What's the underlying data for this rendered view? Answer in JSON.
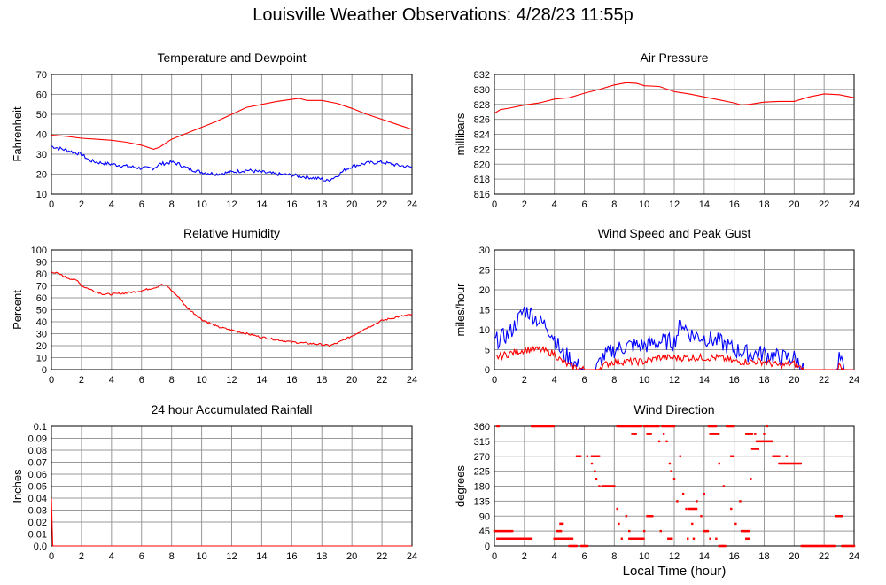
{
  "page_title": "Louisville Weather Observations: 4/28/23 11:55p",
  "x_axis_label": "Local Time (hour)",
  "colors": {
    "primary": "#ff0000",
    "secondary": "#0000ff",
    "grid": "#999999"
  },
  "chart_data": [
    {
      "id": "temp",
      "type": "line",
      "title": "Temperature and Dewpoint",
      "ylabel": "Fahrenheit",
      "xlim": [
        0,
        24
      ],
      "xticks": [
        0,
        2,
        4,
        6,
        8,
        10,
        12,
        14,
        16,
        18,
        20,
        22,
        24
      ],
      "ylim": [
        10,
        70
      ],
      "yticks": [
        10,
        20,
        30,
        40,
        50,
        60,
        70
      ],
      "grid": true,
      "series": [
        {
          "color": "#ff0000",
          "noise": 0,
          "x": [
            0,
            1,
            2,
            3,
            4,
            5,
            6,
            6.8,
            7.2,
            8,
            9,
            10,
            11,
            12,
            13,
            14,
            15,
            16,
            16.5,
            17,
            18,
            19,
            20,
            21,
            22,
            23,
            24
          ],
          "y": [
            39.5,
            39,
            38,
            37.5,
            37,
            36,
            34.5,
            32.5,
            33.5,
            37.5,
            40.5,
            43.5,
            46.5,
            50,
            53.5,
            55,
            56.5,
            57.5,
            58,
            57,
            57,
            55.5,
            53,
            50,
            47.5,
            45,
            42.5
          ]
        },
        {
          "color": "#0000ff",
          "noise": 0.9,
          "x": [
            0,
            0.5,
            1,
            2,
            2.5,
            3,
            4,
            5,
            6,
            6.8,
            7.2,
            8,
            8.5,
            9,
            10,
            11,
            12,
            13,
            14,
            15,
            16,
            17,
            18,
            18.3,
            19,
            19.5,
            20,
            21,
            22,
            23,
            24
          ],
          "y": [
            34,
            33,
            32,
            30,
            27,
            26,
            25,
            24,
            23,
            23,
            25,
            26,
            25,
            23,
            21,
            20,
            21,
            22,
            21,
            20,
            19.5,
            18.5,
            17.5,
            16.5,
            19,
            22,
            24,
            25.5,
            26,
            24.5,
            23.5
          ]
        }
      ]
    },
    {
      "id": "press",
      "type": "line",
      "title": "Air Pressure",
      "ylabel": "millibars",
      "xlim": [
        0,
        24
      ],
      "xticks": [
        0,
        2,
        4,
        6,
        8,
        10,
        12,
        14,
        16,
        18,
        20,
        22,
        24
      ],
      "ylim": [
        816,
        832
      ],
      "yticks": [
        816,
        818,
        820,
        822,
        824,
        826,
        828,
        830,
        832
      ],
      "grid": true,
      "series": [
        {
          "color": "#ff0000",
          "noise": 0,
          "step": true,
          "x": [
            0,
            0.4,
            1,
            2,
            3,
            4,
            5,
            6,
            7,
            8,
            8.8,
            9.5,
            10,
            11,
            12,
            13,
            14,
            15,
            16,
            16.5,
            17,
            18,
            19,
            20,
            21,
            22,
            23,
            24
          ],
          "y": [
            826.8,
            827.3,
            827.5,
            827.9,
            828.2,
            828.7,
            828.9,
            829.5,
            830.0,
            830.6,
            830.9,
            830.8,
            830.5,
            830.4,
            829.7,
            829.4,
            829.0,
            828.6,
            828.2,
            827.9,
            828.0,
            828.3,
            828.4,
            828.4,
            829.0,
            829.4,
            829.3,
            828.9
          ]
        }
      ]
    },
    {
      "id": "rh",
      "type": "line",
      "title": "Relative Humidity",
      "ylabel": "Percent",
      "xlim": [
        0,
        24
      ],
      "xticks": [
        0,
        2,
        4,
        6,
        8,
        10,
        12,
        14,
        16,
        18,
        20,
        22,
        24
      ],
      "ylim": [
        0,
        100
      ],
      "yticks": [
        0,
        10,
        20,
        30,
        40,
        50,
        60,
        70,
        80,
        90,
        100
      ],
      "grid": true,
      "series": [
        {
          "color": "#ff0000",
          "noise": 0.8,
          "x": [
            0,
            0.5,
            1,
            1.8,
            2,
            3,
            3.5,
            4,
            5,
            6,
            7,
            7.3,
            7.7,
            8,
            8.5,
            9,
            10,
            11,
            12,
            13,
            14,
            15,
            16,
            17,
            18,
            18.5,
            19,
            20,
            21,
            22,
            23,
            24
          ],
          "y": [
            82,
            80,
            77,
            74,
            70,
            65,
            63,
            63,
            64,
            66,
            69,
            71,
            70,
            66,
            60,
            52,
            42,
            36,
            33,
            30,
            27,
            25,
            23,
            22,
            21,
            20,
            22,
            28,
            35,
            41,
            44,
            46
          ]
        }
      ]
    },
    {
      "id": "wind",
      "type": "line",
      "title": "Wind Speed and Peak Gust",
      "ylabel": "miles/hour",
      "xlim": [
        0,
        24
      ],
      "xticks": [
        0,
        2,
        4,
        6,
        8,
        10,
        12,
        14,
        16,
        18,
        20,
        22,
        24
      ],
      "ylim": [
        0,
        30
      ],
      "yticks": [
        0,
        5,
        10,
        15,
        20,
        25,
        30
      ],
      "grid": true,
      "series": [
        {
          "color": "#0000ff",
          "noise": 2.2,
          "x": [
            0,
            1,
            1.5,
            2,
            2.5,
            3,
            3.5,
            4,
            4.5,
            5,
            5.5,
            6,
            6.8,
            7.2,
            8,
            9,
            10,
            11,
            12,
            12.5,
            13,
            14,
            15,
            16,
            17,
            18,
            19,
            20,
            20.6,
            21,
            22.9,
            23,
            23.3,
            24
          ],
          "y": [
            7,
            9,
            12,
            15,
            14,
            12,
            11,
            8,
            4,
            3,
            1,
            0,
            0,
            3,
            5,
            6,
            6,
            7,
            7,
            12,
            9,
            8,
            7,
            5,
            4,
            4,
            3,
            3,
            0,
            0,
            0,
            3,
            0,
            0
          ]
        },
        {
          "color": "#ff0000",
          "noise": 0.9,
          "x": [
            0,
            1,
            2,
            3,
            4,
            4.5,
            5,
            5.5,
            6,
            6.8,
            7.2,
            8,
            9,
            10,
            11,
            12,
            13,
            14,
            15,
            16,
            17,
            18,
            19,
            20,
            20.6,
            21,
            22.9,
            23,
            23.3,
            24
          ],
          "y": [
            3,
            4,
            5,
            5,
            4,
            2,
            1,
            0.5,
            0,
            0,
            1,
            2,
            2,
            2,
            3,
            3,
            3,
            3,
            3,
            2,
            2,
            2,
            1,
            1.5,
            0,
            0,
            0,
            1,
            0,
            0
          ]
        }
      ]
    },
    {
      "id": "rain",
      "type": "line",
      "title": "24 hour Accumulated Rainfall",
      "ylabel": "Inches",
      "xlim": [
        0,
        24
      ],
      "xticks": [
        0,
        2,
        4,
        6,
        8,
        10,
        12,
        14,
        16,
        18,
        20,
        22,
        24
      ],
      "ylim": [
        0,
        0.1
      ],
      "yticks": [
        0.0,
        0.01,
        0.02,
        0.03,
        0.04,
        0.05,
        0.06,
        0.07,
        0.08,
        0.09,
        0.1
      ],
      "grid": true,
      "series": [
        {
          "color": "#ff0000",
          "noise": 0,
          "x": [
            0,
            0.08,
            0.1,
            24
          ],
          "y": [
            0.04,
            0.002,
            0,
            0
          ]
        }
      ]
    },
    {
      "id": "dir",
      "type": "scatter",
      "title": "Wind Direction",
      "ylabel": "degrees",
      "xlim": [
        0,
        24
      ],
      "xticks": [
        0,
        2,
        4,
        6,
        8,
        10,
        12,
        14,
        16,
        18,
        20,
        22,
        24
      ],
      "ylim": [
        0,
        360
      ],
      "yticks": [
        0,
        45,
        90,
        135,
        180,
        225,
        270,
        315,
        360
      ],
      "grid": true,
      "series": [
        {
          "color": "#ff0000",
          "runs": [
            [
              0,
              1.2,
              45
            ],
            [
              0.2,
              1.5,
              22
            ],
            [
              1.6,
              2.5,
              22
            ],
            [
              0.2,
              0.3,
              360
            ],
            [
              2.5,
              4.0,
              360
            ],
            [
              4.0,
              4.8,
              22
            ],
            [
              4.2,
              4.5,
              45
            ],
            [
              4.4,
              4.6,
              67
            ],
            [
              4.8,
              5.2,
              22
            ],
            [
              5.5,
              5.8,
              270
            ],
            [
              6.5,
              7.0,
              270
            ],
            [
              7.2,
              8.0,
              180
            ],
            [
              8.2,
              9.8,
              360
            ],
            [
              9.2,
              9.5,
              337
            ],
            [
              10.0,
              11.0,
              360
            ],
            [
              10.2,
              10.5,
              337
            ],
            [
              10.3,
              10.6,
              90
            ],
            [
              11.2,
              12.0,
              360
            ],
            [
              13.0,
              13.5,
              112
            ],
            [
              14.0,
              14.3,
              45
            ],
            [
              14.3,
              14.8,
              360
            ],
            [
              14.4,
              15.0,
              337
            ],
            [
              15.5,
              16.0,
              360
            ],
            [
              16.5,
              17.0,
              45
            ],
            [
              16.8,
              17.0,
              22
            ],
            [
              15.8,
              16.0,
              270
            ],
            [
              16.8,
              17.2,
              337
            ],
            [
              17.2,
              17.6,
              292
            ],
            [
              17.5,
              18.6,
              315
            ],
            [
              18.6,
              19.0,
              270
            ],
            [
              19.0,
              20.5,
              248
            ],
            [
              20.5,
              22.8,
              0
            ],
            [
              22.8,
              23.2,
              90
            ],
            [
              23.2,
              24.0,
              0
            ],
            [
              5.0,
              5.5,
              0
            ],
            [
              5.8,
              6.2,
              0
            ],
            [
              9.0,
              10.0,
              22
            ],
            [
              11.6,
              11.9,
              22
            ],
            [
              15.0,
              15.4,
              0
            ]
          ],
          "points": [
            [
              6.2,
              270
            ],
            [
              6.5,
              248
            ],
            [
              6.7,
              225
            ],
            [
              6.8,
              202
            ],
            [
              7.0,
              180
            ],
            [
              8.2,
              112
            ],
            [
              8.3,
              67
            ],
            [
              8.5,
              22
            ],
            [
              8.8,
              90
            ],
            [
              9.0,
              45
            ],
            [
              10.2,
              90
            ],
            [
              11.1,
              45
            ],
            [
              11.3,
              337
            ],
            [
              11.5,
              315
            ],
            [
              11.7,
              248
            ],
            [
              11.8,
              225
            ],
            [
              12.0,
              202
            ],
            [
              12.2,
              135
            ],
            [
              12.4,
              270
            ],
            [
              12.6,
              157
            ],
            [
              12.8,
              112
            ],
            [
              13.2,
              67
            ],
            [
              13.5,
              135
            ],
            [
              13.8,
              90
            ],
            [
              14.0,
              157
            ],
            [
              14.4,
              22
            ],
            [
              14.8,
              22
            ],
            [
              15.0,
              248
            ],
            [
              15.3,
              180
            ],
            [
              15.8,
              112
            ],
            [
              16.1,
              67
            ],
            [
              16.4,
              135
            ],
            [
              17.1,
              202
            ],
            [
              17.4,
              337
            ],
            [
              17.6,
              292
            ],
            [
              18.0,
              337
            ],
            [
              18.2,
              360
            ],
            [
              19.5,
              270
            ],
            [
              11.0,
              315
            ],
            [
              12.9,
              22
            ],
            [
              13.3,
              22
            ],
            [
              10.0,
              45
            ]
          ]
        }
      ]
    }
  ]
}
